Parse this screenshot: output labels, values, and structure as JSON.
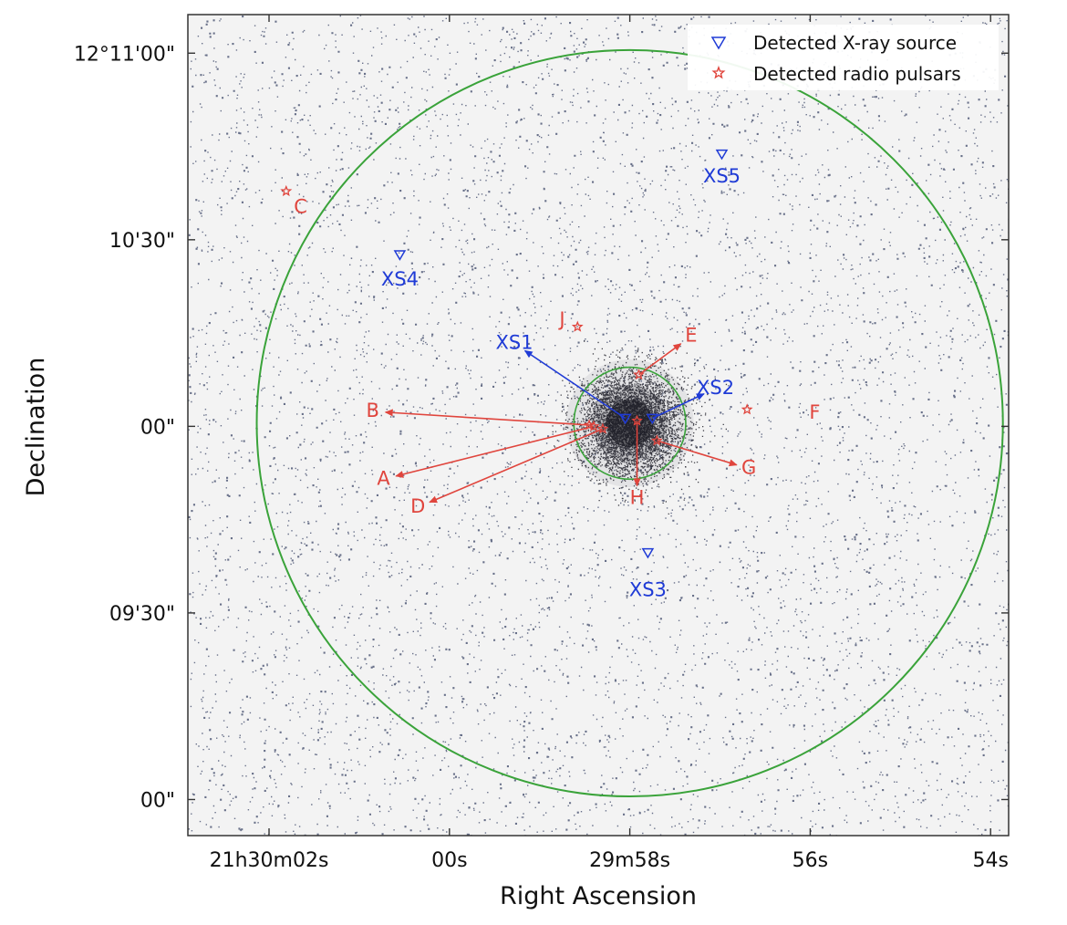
{
  "chart_data": {
    "type": "scatter",
    "xlabel": "Right Ascension",
    "ylabel": "Declination",
    "x_ticks": [
      "21h30m02s",
      "00s",
      "29m58s",
      "56s",
      "54s"
    ],
    "y_ticks": [
      "12°11'00\"",
      "10'30\"",
      "00\"",
      "09'30\"",
      "00\""
    ],
    "x_tick_values_s": [
      2,
      0,
      -2,
      -4,
      -6
    ],
    "y_tick_values_arcsec": [
      660,
      630,
      600,
      570,
      540
    ],
    "xlim_s": [
      2.9,
      -6.2
    ],
    "ylim_arcsec": [
      666.2,
      534.2
    ],
    "grid": false,
    "legend": {
      "placement": "top-right",
      "entries": [
        {
          "label": "Detected X-ray source",
          "marker": "triangle-down",
          "color": "#1f3bd6"
        },
        {
          "label": "Detected radio pulsars",
          "marker": "star",
          "color": "#e0453d"
        }
      ]
    },
    "colors": {
      "xray": "#1f3bd6",
      "pulsar": "#e0453d",
      "circles": "#3aa33a",
      "background": "#f2f2f2"
    },
    "circles": [
      {
        "name": "outer",
        "center_ra_s": -2.0,
        "center_dec_arcsec": 600.5,
        "radius_arcsec": 60
      },
      {
        "name": "core",
        "center_ra_s": -2.0,
        "center_dec_arcsec": 600.5,
        "radius_arcsec": 9
      }
    ],
    "xray_sources": [
      {
        "label": "XS1",
        "ra_s": -1.95,
        "dec_arcsec": 601.3,
        "label_ra_s": -0.72,
        "label_dec_arcsec": 613.3,
        "arrow": true
      },
      {
        "label": "XS2",
        "ra_s": -2.25,
        "dec_arcsec": 601.3,
        "label_ra_s": -2.95,
        "label_dec_arcsec": 606.1,
        "arrow": true
      },
      {
        "label": "XS3",
        "ra_s": -2.2,
        "dec_arcsec": 579.7,
        "label_ra_s": -2.2,
        "label_dec_arcsec": 573.6,
        "arrow": false
      },
      {
        "label": "XS4",
        "ra_s": 0.55,
        "dec_arcsec": 627.6,
        "label_ra_s": 0.55,
        "label_dec_arcsec": 623.5,
        "arrow": false
      },
      {
        "label": "XS5",
        "ra_s": -3.02,
        "dec_arcsec": 643.8,
        "label_ra_s": -3.02,
        "label_dec_arcsec": 640.1,
        "arrow": false
      }
    ],
    "pulsars": [
      {
        "label": "A",
        "ra_s": -1.6,
        "dec_arcsec": 600.0,
        "label_ra_s": 0.73,
        "label_dec_arcsec": 591.5,
        "arrow": true
      },
      {
        "label": "B",
        "ra_s": -1.55,
        "dec_arcsec": 600.2,
        "label_ra_s": 0.85,
        "label_dec_arcsec": 602.4,
        "arrow": true
      },
      {
        "label": "C",
        "ra_s": 1.81,
        "dec_arcsec": 637.8,
        "label_ra_s": 1.65,
        "label_dec_arcsec": 635.2,
        "arrow": false
      },
      {
        "label": "D",
        "ra_s": -1.7,
        "dec_arcsec": 599.6,
        "label_ra_s": 0.35,
        "label_dec_arcsec": 587.0,
        "arrow": true
      },
      {
        "label": "E",
        "ra_s": -2.1,
        "dec_arcsec": 608.3,
        "label_ra_s": -2.68,
        "label_dec_arcsec": 614.5,
        "arrow": true
      },
      {
        "label": "F",
        "ra_s": -3.3,
        "dec_arcsec": 602.7,
        "label_ra_s": -4.05,
        "label_dec_arcsec": 602.1,
        "arrow": false
      },
      {
        "label": "G",
        "ra_s": -2.3,
        "dec_arcsec": 597.7,
        "label_ra_s": -3.32,
        "label_dec_arcsec": 593.2,
        "arrow": true
      },
      {
        "label": "H",
        "ra_s": -2.08,
        "dec_arcsec": 600.9,
        "label_ra_s": -2.08,
        "label_dec_arcsec": 588.4,
        "arrow": true
      },
      {
        "label": "J",
        "ra_s": -1.42,
        "dec_arcsec": 616.0,
        "label_ra_s": -1.25,
        "label_dec_arcsec": 617.1,
        "arrow": false
      }
    ]
  }
}
